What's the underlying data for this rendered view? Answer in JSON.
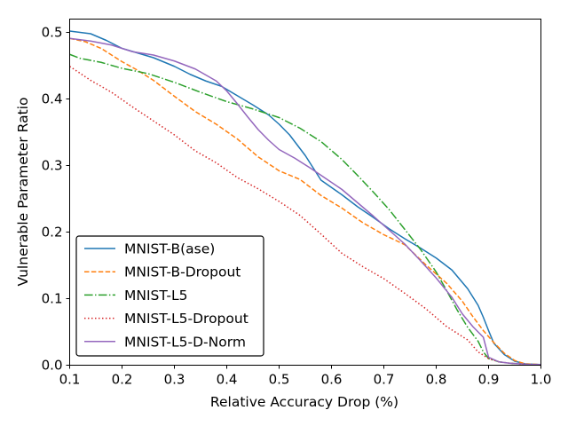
{
  "chart_data": {
    "type": "line",
    "title": "",
    "xlabel": "Relative Accuracy Drop (%)",
    "ylabel": "Vulnerable Parameter Ratio",
    "xlim": [
      0.1,
      1.0
    ],
    "ylim": [
      0.0,
      0.52
    ],
    "xticks": [
      0.1,
      0.2,
      0.3,
      0.4,
      0.5,
      0.6,
      0.7,
      0.8,
      0.9,
      1.0
    ],
    "xtick_labels": [
      "0.1",
      "0.2",
      "0.3",
      "0.4",
      "0.5",
      "0.6",
      "0.7",
      "0.8",
      "0.9",
      "1.0"
    ],
    "yticks": [
      0.0,
      0.1,
      0.2,
      0.3,
      0.4,
      0.5
    ],
    "ytick_labels": [
      "0.0",
      "0.1",
      "0.2",
      "0.3",
      "0.4",
      "0.5"
    ],
    "grid": false,
    "legend_position": "lower-left",
    "series": [
      {
        "name": "MNIST-B(ase)",
        "color": "#1f77b4",
        "dash": "solid",
        "x": [
          0.1,
          0.14,
          0.17,
          0.2,
          0.23,
          0.26,
          0.3,
          0.33,
          0.36,
          0.39,
          0.42,
          0.45,
          0.48,
          0.5,
          0.52,
          0.55,
          0.58,
          0.62,
          0.65,
          0.68,
          0.71,
          0.74,
          0.77,
          0.8,
          0.83,
          0.86,
          0.88,
          0.89,
          0.9,
          0.91,
          0.93,
          0.95,
          0.97,
          1.0
        ],
        "y": [
          0.502,
          0.498,
          0.488,
          0.476,
          0.469,
          0.462,
          0.449,
          0.437,
          0.427,
          0.419,
          0.405,
          0.391,
          0.376,
          0.362,
          0.346,
          0.315,
          0.278,
          0.256,
          0.238,
          0.222,
          0.205,
          0.19,
          0.176,
          0.161,
          0.143,
          0.115,
          0.09,
          0.072,
          0.052,
          0.033,
          0.016,
          0.006,
          0.002,
          0.001
        ]
      },
      {
        "name": "MNIST-B-Dropout",
        "color": "#ff7f0e",
        "dash": "dashed",
        "x": [
          0.1,
          0.13,
          0.16,
          0.2,
          0.23,
          0.26,
          0.3,
          0.34,
          0.38,
          0.42,
          0.46,
          0.5,
          0.54,
          0.58,
          0.62,
          0.66,
          0.7,
          0.74,
          0.78,
          0.82,
          0.85,
          0.87,
          0.89,
          0.91,
          0.93,
          0.95,
          0.97,
          1.0
        ],
        "y": [
          0.491,
          0.486,
          0.476,
          0.456,
          0.443,
          0.428,
          0.404,
          0.381,
          0.362,
          0.34,
          0.313,
          0.292,
          0.279,
          0.255,
          0.236,
          0.214,
          0.196,
          0.181,
          0.151,
          0.123,
          0.096,
          0.073,
          0.052,
          0.034,
          0.018,
          0.007,
          0.002,
          0.001
        ]
      },
      {
        "name": "MNIST-L5",
        "color": "#2ca02c",
        "dash": "dashdot",
        "x": [
          0.1,
          0.12,
          0.16,
          0.2,
          0.25,
          0.3,
          0.35,
          0.4,
          0.45,
          0.5,
          0.54,
          0.58,
          0.62,
          0.65,
          0.68,
          0.71,
          0.74,
          0.77,
          0.8,
          0.82,
          0.84,
          0.86,
          0.88,
          0.89,
          0.9,
          0.92,
          0.94,
          0.96,
          0.98,
          1.0
        ],
        "y": [
          0.467,
          0.461,
          0.455,
          0.446,
          0.438,
          0.425,
          0.41,
          0.396,
          0.385,
          0.372,
          0.356,
          0.336,
          0.309,
          0.285,
          0.26,
          0.234,
          0.204,
          0.174,
          0.14,
          0.112,
          0.083,
          0.057,
          0.036,
          0.02,
          0.01,
          0.005,
          0.003,
          0.002,
          0.001,
          0.001
        ]
      },
      {
        "name": "MNIST-L5-Dropout",
        "color": "#d62728",
        "dash": "dotted",
        "x": [
          0.1,
          0.14,
          0.18,
          0.22,
          0.26,
          0.3,
          0.34,
          0.38,
          0.42,
          0.46,
          0.5,
          0.54,
          0.58,
          0.62,
          0.66,
          0.7,
          0.74,
          0.78,
          0.82,
          0.86,
          0.88,
          0.9,
          0.92,
          0.94,
          0.96,
          0.98,
          1.0
        ],
        "y": [
          0.449,
          0.428,
          0.41,
          0.388,
          0.367,
          0.346,
          0.322,
          0.304,
          0.282,
          0.265,
          0.246,
          0.225,
          0.197,
          0.168,
          0.148,
          0.13,
          0.108,
          0.085,
          0.058,
          0.038,
          0.02,
          0.01,
          0.005,
          0.003,
          0.002,
          0.001,
          0.0
        ]
      },
      {
        "name": "MNIST-L5-D-Norm",
        "color": "#9467bd",
        "dash": "solid",
        "x": [
          0.1,
          0.14,
          0.18,
          0.22,
          0.26,
          0.3,
          0.34,
          0.38,
          0.4,
          0.42,
          0.44,
          0.46,
          0.48,
          0.5,
          0.53,
          0.56,
          0.59,
          0.62,
          0.65,
          0.68,
          0.71,
          0.74,
          0.77,
          0.8,
          0.83,
          0.85,
          0.87,
          0.89,
          0.9,
          0.92,
          0.94,
          0.96,
          0.98,
          1.0
        ],
        "y": [
          0.491,
          0.487,
          0.481,
          0.471,
          0.466,
          0.457,
          0.445,
          0.427,
          0.412,
          0.393,
          0.373,
          0.354,
          0.338,
          0.324,
          0.311,
          0.296,
          0.28,
          0.264,
          0.244,
          0.224,
          0.203,
          0.182,
          0.157,
          0.131,
          0.102,
          0.077,
          0.058,
          0.042,
          0.012,
          0.005,
          0.003,
          0.002,
          0.001,
          0.001
        ]
      }
    ]
  }
}
